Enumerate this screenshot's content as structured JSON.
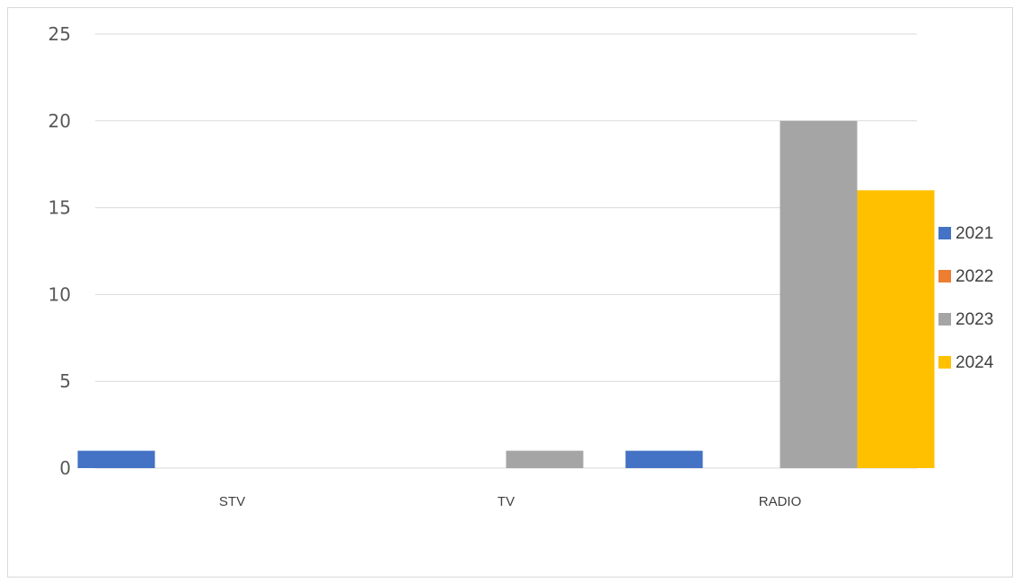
{
  "chart_data": {
    "type": "bar",
    "title": "",
    "xlabel": "",
    "ylabel": "",
    "categories": [
      "STV",
      "TV",
      "RADIO"
    ],
    "series": [
      {
        "name": "2021",
        "color": "#4472c4",
        "values": [
          1,
          0,
          1
        ]
      },
      {
        "name": "2022",
        "color": "#ed7d31",
        "values": [
          0,
          0,
          0
        ]
      },
      {
        "name": "2023",
        "color": "#a5a5a5",
        "values": [
          0,
          1,
          20
        ]
      },
      {
        "name": "2024",
        "color": "#ffc000",
        "values": [
          0,
          0,
          16
        ]
      }
    ],
    "ylim": [
      0,
      25
    ],
    "yticks": [
      0,
      5,
      10,
      15,
      20,
      25
    ],
    "grid": true,
    "legend_position": "right"
  }
}
